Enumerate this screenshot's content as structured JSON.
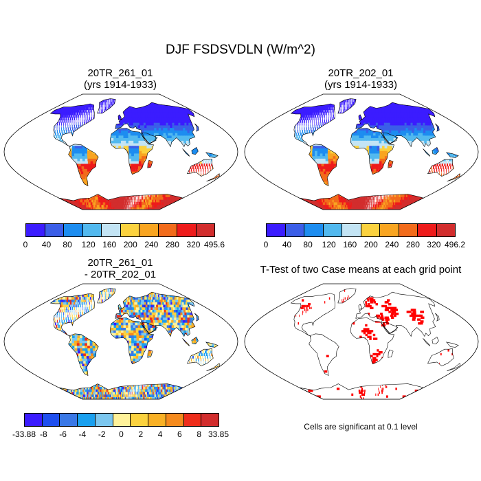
{
  "title": "DJF FSDSVDLN (W/m^2)",
  "panels": [
    {
      "id": "case1",
      "title_line1": "20TR_261_01",
      "title_line2": "(yrs 1914-1933)",
      "type": "climatology"
    },
    {
      "id": "case2",
      "title_line1": "20TR_202_01",
      "title_line2": "(yrs 1914-1933)",
      "type": "climatology"
    },
    {
      "id": "diff",
      "title_line1": "20TR_261_01",
      "title_line2": "- 20TR_202_01",
      "type": "difference"
    },
    {
      "id": "ttest",
      "title_line1": "T-Test of two Case means at each grid point",
      "title_line2": "",
      "type": "significance"
    }
  ],
  "colorbars": {
    "case1": {
      "labels": [
        "0",
        "40",
        "80",
        "120",
        "160",
        "200",
        "240",
        "280",
        "320",
        "495.6"
      ],
      "colors": [
        "#3b1cff",
        "#3b5ee8",
        "#1d8df0",
        "#52b9ef",
        "#c3e4f4",
        "#fbd23f",
        "#f9a521",
        "#f26b1b",
        "#ee1b1b",
        "#d22d2d"
      ]
    },
    "case2": {
      "labels": [
        "0",
        "40",
        "80",
        "120",
        "160",
        "200",
        "240",
        "280",
        "320",
        "496.2"
      ],
      "colors": [
        "#3b1cff",
        "#3b5ee8",
        "#1d8df0",
        "#52b9ef",
        "#c3e4f4",
        "#fbd23f",
        "#f9a521",
        "#f26b1b",
        "#ee1b1b",
        "#d22d2d"
      ]
    },
    "diff": {
      "labels": [
        "-33.88",
        "-8",
        "-6",
        "-4",
        "-2",
        "0",
        "2",
        "4",
        "6",
        "8",
        "33.85"
      ],
      "colors": [
        "#3b1cff",
        "#1f4fef",
        "#3a78e6",
        "#1aa0ef",
        "#7cc7ef",
        "#fff29a",
        "#fbd23f",
        "#f9b126",
        "#f58a1d",
        "#ee2d1b",
        "#d22d2d"
      ]
    }
  },
  "footnote": "Cells are significant at 0.1 level",
  "colors": {
    "significant": "#ff0000",
    "ocean": "#ffffff",
    "coast": "#000000"
  }
}
